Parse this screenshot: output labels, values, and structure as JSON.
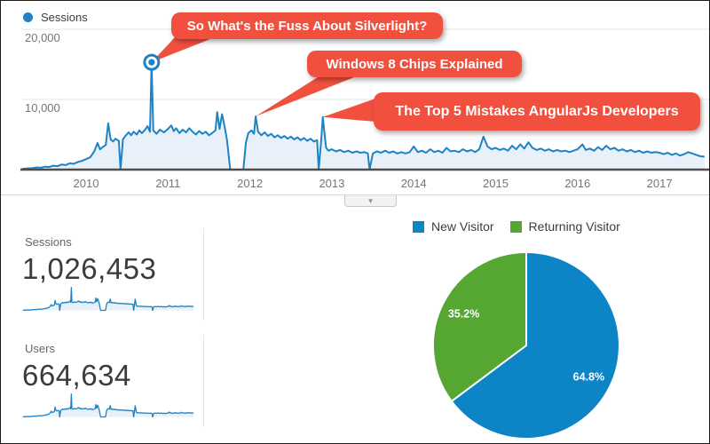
{
  "header": {
    "legend_label": "Sessions"
  },
  "chart_data": [
    {
      "id": "sessions-over-time",
      "type": "area",
      "series_name": "Sessions",
      "line_color": "#1d83c4",
      "area_fill": "#e8f1f9",
      "annotation_color": "#f2503f",
      "grid": true,
      "legend_position": "top-left",
      "x_range": [
        2009.22,
        2017.55
      ],
      "ylim": [
        0,
        22000
      ],
      "x_ticks": [
        2010,
        2011,
        2012,
        2013,
        2014,
        2015,
        2016,
        2017
      ],
      "y_ticks": [
        {
          "label": "20,000",
          "value": 20000
        },
        {
          "label": "10,000",
          "value": 10000
        }
      ],
      "marker": {
        "x": 2010.8,
        "y": 15300
      },
      "annotations": [
        {
          "text": "So What's the Fuss About Silverlight?",
          "target_x": 2010.8,
          "target_y": 15300
        },
        {
          "text": "Windows 8 Chips Explained",
          "target_x": 2012.07,
          "target_y": 7600
        },
        {
          "text": "The Top 5 Mistakes AngularJs Developers",
          "target_x": 2012.89,
          "target_y": 7500
        }
      ],
      "points": [
        [
          2009.22,
          120
        ],
        [
          2009.28,
          180
        ],
        [
          2009.34,
          200
        ],
        [
          2009.4,
          320
        ],
        [
          2009.45,
          260
        ],
        [
          2009.5,
          420
        ],
        [
          2009.55,
          380
        ],
        [
          2009.6,
          560
        ],
        [
          2009.65,
          500
        ],
        [
          2009.7,
          720
        ],
        [
          2009.75,
          650
        ],
        [
          2009.8,
          900
        ],
        [
          2009.85,
          820
        ],
        [
          2009.9,
          1100
        ],
        [
          2009.95,
          1250
        ],
        [
          2010.0,
          1500
        ],
        [
          2010.05,
          1750
        ],
        [
          2010.1,
          2600
        ],
        [
          2010.14,
          3800
        ],
        [
          2010.17,
          2900
        ],
        [
          2010.2,
          3200
        ],
        [
          2010.24,
          3500
        ],
        [
          2010.27,
          6600
        ],
        [
          2010.3,
          4300
        ],
        [
          2010.33,
          4000
        ],
        [
          2010.36,
          4400
        ],
        [
          2010.4,
          4100
        ],
        [
          2010.42,
          0
        ],
        [
          2010.45,
          4300
        ],
        [
          2010.48,
          4800
        ],
        [
          2010.52,
          5300
        ],
        [
          2010.55,
          4900
        ],
        [
          2010.58,
          5400
        ],
        [
          2010.62,
          5000
        ],
        [
          2010.65,
          5600
        ],
        [
          2010.68,
          5200
        ],
        [
          2010.72,
          5700
        ],
        [
          2010.75,
          6200
        ],
        [
          2010.78,
          5400
        ],
        [
          2010.8,
          15300
        ],
        [
          2010.82,
          5600
        ],
        [
          2010.86,
          5100
        ],
        [
          2010.9,
          5700
        ],
        [
          2010.95,
          5300
        ],
        [
          2011.0,
          5800
        ],
        [
          2011.04,
          6300
        ],
        [
          2011.07,
          5500
        ],
        [
          2011.1,
          5900
        ],
        [
          2011.14,
          5200
        ],
        [
          2011.18,
          5700
        ],
        [
          2011.22,
          5300
        ],
        [
          2011.26,
          5900
        ],
        [
          2011.3,
          5400
        ],
        [
          2011.34,
          5000
        ],
        [
          2011.38,
          5500
        ],
        [
          2011.42,
          5100
        ],
        [
          2011.46,
          5400
        ],
        [
          2011.5,
          4900
        ],
        [
          2011.54,
          5200
        ],
        [
          2011.58,
          5600
        ],
        [
          2011.6,
          8200
        ],
        [
          2011.63,
          5800
        ],
        [
          2011.66,
          7900
        ],
        [
          2011.69,
          6200
        ],
        [
          2011.72,
          4200
        ],
        [
          2011.76,
          0
        ],
        [
          2011.84,
          0
        ],
        [
          2011.92,
          0
        ],
        [
          2011.95,
          3800
        ],
        [
          2011.98,
          5200
        ],
        [
          2012.02,
          5600
        ],
        [
          2012.05,
          5100
        ],
        [
          2012.07,
          7600
        ],
        [
          2012.1,
          5400
        ],
        [
          2012.14,
          4900
        ],
        [
          2012.18,
          5300
        ],
        [
          2012.22,
          4800
        ],
        [
          2012.26,
          5100
        ],
        [
          2012.3,
          4600
        ],
        [
          2012.34,
          4900
        ],
        [
          2012.38,
          4500
        ],
        [
          2012.42,
          4800
        ],
        [
          2012.46,
          4400
        ],
        [
          2012.5,
          4700
        ],
        [
          2012.54,
          4300
        ],
        [
          2012.58,
          4600
        ],
        [
          2012.62,
          4200
        ],
        [
          2012.66,
          4500
        ],
        [
          2012.7,
          4100
        ],
        [
          2012.74,
          4400
        ],
        [
          2012.78,
          4000
        ],
        [
          2012.82,
          4200
        ],
        [
          2012.84,
          0
        ],
        [
          2012.87,
          4100
        ],
        [
          2012.89,
          7500
        ],
        [
          2012.93,
          3100
        ],
        [
          2012.96,
          2700
        ],
        [
          2013.0,
          2900
        ],
        [
          2013.05,
          2600
        ],
        [
          2013.1,
          2800
        ],
        [
          2013.15,
          2500
        ],
        [
          2013.2,
          2700
        ],
        [
          2013.25,
          2400
        ],
        [
          2013.3,
          2600
        ],
        [
          2013.35,
          2400
        ],
        [
          2013.4,
          2500
        ],
        [
          2013.44,
          2300
        ],
        [
          2013.46,
          0
        ],
        [
          2013.5,
          2300
        ],
        [
          2013.55,
          2600
        ],
        [
          2013.6,
          2400
        ],
        [
          2013.65,
          2700
        ],
        [
          2013.7,
          2400
        ],
        [
          2013.75,
          2600
        ],
        [
          2013.8,
          2300
        ],
        [
          2013.85,
          2500
        ],
        [
          2013.9,
          2300
        ],
        [
          2013.95,
          2500
        ],
        [
          2014.0,
          3300
        ],
        [
          2014.05,
          2500
        ],
        [
          2014.1,
          2700
        ],
        [
          2014.15,
          2400
        ],
        [
          2014.2,
          2900
        ],
        [
          2014.25,
          2500
        ],
        [
          2014.3,
          2700
        ],
        [
          2014.35,
          2400
        ],
        [
          2014.4,
          3100
        ],
        [
          2014.45,
          2600
        ],
        [
          2014.5,
          2700
        ],
        [
          2014.55,
          2500
        ],
        [
          2014.6,
          2900
        ],
        [
          2014.65,
          2600
        ],
        [
          2014.7,
          2800
        ],
        [
          2014.75,
          2500
        ],
        [
          2014.8,
          2900
        ],
        [
          2014.85,
          4700
        ],
        [
          2014.9,
          3300
        ],
        [
          2014.95,
          2900
        ],
        [
          2015.0,
          3100
        ],
        [
          2015.05,
          2800
        ],
        [
          2015.1,
          3000
        ],
        [
          2015.15,
          2700
        ],
        [
          2015.2,
          3400
        ],
        [
          2015.25,
          2900
        ],
        [
          2015.3,
          3600
        ],
        [
          2015.35,
          3000
        ],
        [
          2015.4,
          3900
        ],
        [
          2015.45,
          3100
        ],
        [
          2015.5,
          2800
        ],
        [
          2015.55,
          3000
        ],
        [
          2015.6,
          2700
        ],
        [
          2015.65,
          2900
        ],
        [
          2015.7,
          2600
        ],
        [
          2015.75,
          2800
        ],
        [
          2015.8,
          2600
        ],
        [
          2015.85,
          2700
        ],
        [
          2015.9,
          2500
        ],
        [
          2015.95,
          2700
        ],
        [
          2016.0,
          2900
        ],
        [
          2016.06,
          3600
        ],
        [
          2016.1,
          2800
        ],
        [
          2016.15,
          3000
        ],
        [
          2016.2,
          2700
        ],
        [
          2016.25,
          3200
        ],
        [
          2016.3,
          2800
        ],
        [
          2016.35,
          3400
        ],
        [
          2016.4,
          2900
        ],
        [
          2016.45,
          3100
        ],
        [
          2016.5,
          2700
        ],
        [
          2016.55,
          2900
        ],
        [
          2016.6,
          2600
        ],
        [
          2016.65,
          2800
        ],
        [
          2016.7,
          2500
        ],
        [
          2016.75,
          2700
        ],
        [
          2016.8,
          2400
        ],
        [
          2016.85,
          2600
        ],
        [
          2016.9,
          2400
        ],
        [
          2016.95,
          2500
        ],
        [
          2017.0,
          2400
        ],
        [
          2017.05,
          2200
        ],
        [
          2017.1,
          2400
        ],
        [
          2017.15,
          2100
        ],
        [
          2017.2,
          2300
        ],
        [
          2017.25,
          2000
        ],
        [
          2017.3,
          2200
        ],
        [
          2017.35,
          2500
        ],
        [
          2017.4,
          2300
        ],
        [
          2017.45,
          2100
        ],
        [
          2017.5,
          1900
        ],
        [
          2017.55,
          1850
        ]
      ]
    },
    {
      "id": "visitor-type",
      "type": "pie",
      "legend_position": "top",
      "slices": [
        {
          "label": "New Visitor",
          "value": 64.8,
          "display": "64.8%",
          "color": "#0c84c6"
        },
        {
          "label": "Returning Visitor",
          "value": 35.2,
          "display": "35.2%",
          "color": "#56a632"
        }
      ]
    }
  ],
  "stats": {
    "sessions": {
      "label": "Sessions",
      "value": "1,026,453"
    },
    "users": {
      "label": "Users",
      "value": "664,634"
    },
    "sparkline_x_range": [
      2009.22,
      2014.8
    ]
  },
  "controls": {
    "expand_icon": "▾"
  }
}
